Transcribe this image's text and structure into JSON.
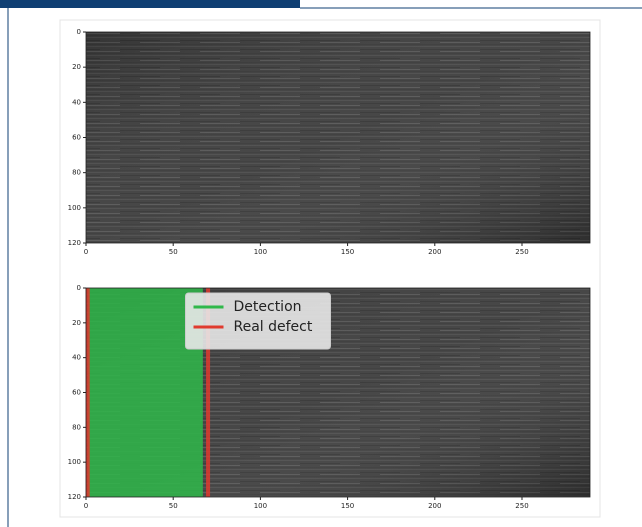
{
  "chart_data": [
    {
      "type": "image",
      "xlim": [
        0,
        289
      ],
      "ylim": [
        120,
        0
      ],
      "xticks": [
        0,
        50,
        100,
        150,
        200,
        250
      ],
      "yticks": [
        0,
        20,
        40,
        60,
        80,
        100,
        120
      ]
    },
    {
      "type": "image",
      "xlim": [
        0,
        289
      ],
      "ylim": [
        120,
        0
      ],
      "xticks": [
        0,
        50,
        100,
        150,
        200,
        250
      ],
      "yticks": [
        0,
        20,
        40,
        60,
        80,
        100,
        120
      ],
      "legend": "upper center",
      "series": [
        {
          "name": "Detection",
          "color": "#2fb84a",
          "x": [
            1,
            67
          ]
        },
        {
          "name": "Real defect",
          "color": "#e03a2e",
          "x": [
            1,
            70
          ]
        }
      ]
    }
  ]
}
